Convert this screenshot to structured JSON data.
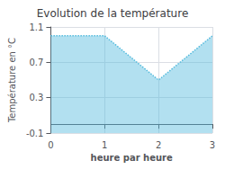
{
  "chart_data": {
    "type": "area",
    "title": "Evolution de la température",
    "x_label": "heure par heure",
    "y_label": "Température en °C",
    "x": [
      0,
      1,
      2,
      3
    ],
    "values": [
      1.0,
      1.0,
      0.5,
      1.0
    ],
    "color": "#55bbdd",
    "line_style": "dotted",
    "xlim": [
      0,
      3
    ],
    "ylim": [
      -0.1,
      1.1
    ],
    "xticks": [
      0,
      1,
      2,
      3
    ],
    "yticks": [
      -0.1,
      0.3,
      0.7,
      1.1
    ],
    "grid": true
  }
}
